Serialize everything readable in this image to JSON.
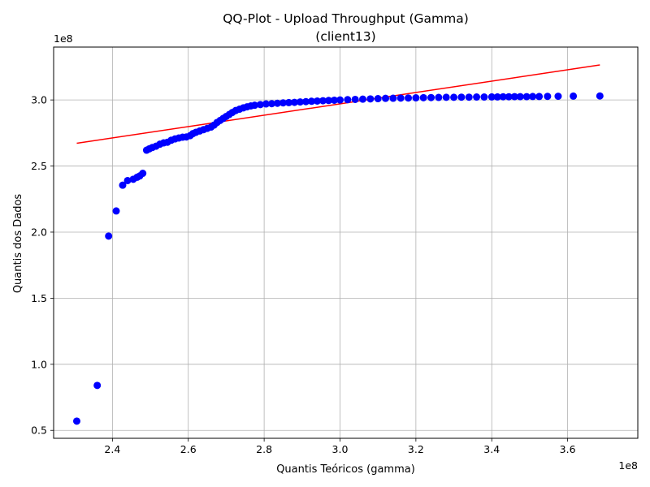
{
  "chart_data": {
    "type": "scatter",
    "title": "QQ-Plot - Upload Throughput (Gamma)",
    "subtitle": "(client13)",
    "xlabel": "Quantis Teóricos (gamma)",
    "ylabel": "Quantis dos Dados",
    "x_offset_label": "1e8",
    "y_offset_label": "1e8",
    "xlim": [
      2.245,
      3.785
    ],
    "ylim": [
      0.44,
      3.4
    ],
    "x_ticks": [
      2.4,
      2.6,
      2.8,
      3.0,
      3.2,
      3.4,
      3.6
    ],
    "x_tick_labels": [
      "2.4",
      "2.6",
      "2.8",
      "3.0",
      "3.2",
      "3.4",
      "3.6"
    ],
    "y_ticks": [
      0.5,
      1.0,
      1.5,
      2.0,
      2.5,
      3.0
    ],
    "y_tick_labels": [
      "0.5",
      "1.0",
      "1.5",
      "2.0",
      "2.5",
      "3.0"
    ],
    "grid": true,
    "scale_note": "values in units of 1e8",
    "series": [
      {
        "marker_color": "#0000ff",
        "points": [
          [
            2.306,
            0.57
          ],
          [
            2.36,
            0.84
          ],
          [
            2.39,
            1.97
          ],
          [
            2.41,
            2.16
          ],
          [
            2.427,
            2.355
          ],
          [
            2.44,
            2.39
          ],
          [
            2.455,
            2.4
          ],
          [
            2.465,
            2.415
          ],
          [
            2.472,
            2.425
          ],
          [
            2.48,
            2.445
          ],
          [
            2.49,
            2.62
          ],
          [
            2.497,
            2.63
          ],
          [
            2.505,
            2.64
          ],
          [
            2.515,
            2.65
          ],
          [
            2.525,
            2.665
          ],
          [
            2.535,
            2.675
          ],
          [
            2.545,
            2.68
          ],
          [
            2.555,
            2.695
          ],
          [
            2.565,
            2.705
          ],
          [
            2.575,
            2.712
          ],
          [
            2.585,
            2.718
          ],
          [
            2.595,
            2.72
          ],
          [
            2.605,
            2.73
          ],
          [
            2.612,
            2.745
          ],
          [
            2.62,
            2.755
          ],
          [
            2.63,
            2.765
          ],
          [
            2.64,
            2.775
          ],
          [
            2.65,
            2.785
          ],
          [
            2.66,
            2.795
          ],
          [
            2.668,
            2.81
          ],
          [
            2.676,
            2.83
          ],
          [
            2.684,
            2.845
          ],
          [
            2.692,
            2.86
          ],
          [
            2.7,
            2.875
          ],
          [
            2.708,
            2.89
          ],
          [
            2.716,
            2.905
          ],
          [
            2.725,
            2.92
          ],
          [
            2.735,
            2.93
          ],
          [
            2.745,
            2.94
          ],
          [
            2.755,
            2.948
          ],
          [
            2.765,
            2.955
          ],
          [
            2.775,
            2.96
          ],
          [
            2.79,
            2.965
          ],
          [
            2.805,
            2.97
          ],
          [
            2.82,
            2.972
          ],
          [
            2.835,
            2.975
          ],
          [
            2.85,
            2.978
          ],
          [
            2.865,
            2.98
          ],
          [
            2.88,
            2.982
          ],
          [
            2.895,
            2.985
          ],
          [
            2.91,
            2.987
          ],
          [
            2.925,
            2.99
          ],
          [
            2.94,
            2.992
          ],
          [
            2.955,
            2.994
          ],
          [
            2.97,
            2.996
          ],
          [
            2.985,
            2.998
          ],
          [
            3.0,
            3.0
          ],
          [
            3.02,
            3.002
          ],
          [
            3.04,
            3.004
          ],
          [
            3.06,
            3.006
          ],
          [
            3.08,
            3.008
          ],
          [
            3.1,
            3.01
          ],
          [
            3.12,
            3.012
          ],
          [
            3.14,
            3.013
          ],
          [
            3.16,
            3.014
          ],
          [
            3.18,
            3.015
          ],
          [
            3.2,
            3.016
          ],
          [
            3.22,
            3.017
          ],
          [
            3.24,
            3.018
          ],
          [
            3.26,
            3.019
          ],
          [
            3.28,
            3.02
          ],
          [
            3.3,
            3.02
          ],
          [
            3.32,
            3.021
          ],
          [
            3.34,
            3.021
          ],
          [
            3.36,
            3.022
          ],
          [
            3.38,
            3.022
          ],
          [
            3.4,
            3.023
          ],
          [
            3.415,
            3.023
          ],
          [
            3.43,
            3.024
          ],
          [
            3.445,
            3.024
          ],
          [
            3.46,
            3.025
          ],
          [
            3.475,
            3.025
          ],
          [
            3.492,
            3.025
          ],
          [
            3.508,
            3.026
          ],
          [
            3.525,
            3.026
          ],
          [
            3.547,
            3.027
          ],
          [
            3.575,
            3.028
          ],
          [
            3.615,
            3.029
          ],
          [
            3.685,
            3.03
          ]
        ]
      }
    ],
    "reference_line": {
      "color": "#ff0000",
      "x": [
        2.306,
        3.685
      ],
      "y": [
        2.672,
        3.265
      ]
    }
  }
}
